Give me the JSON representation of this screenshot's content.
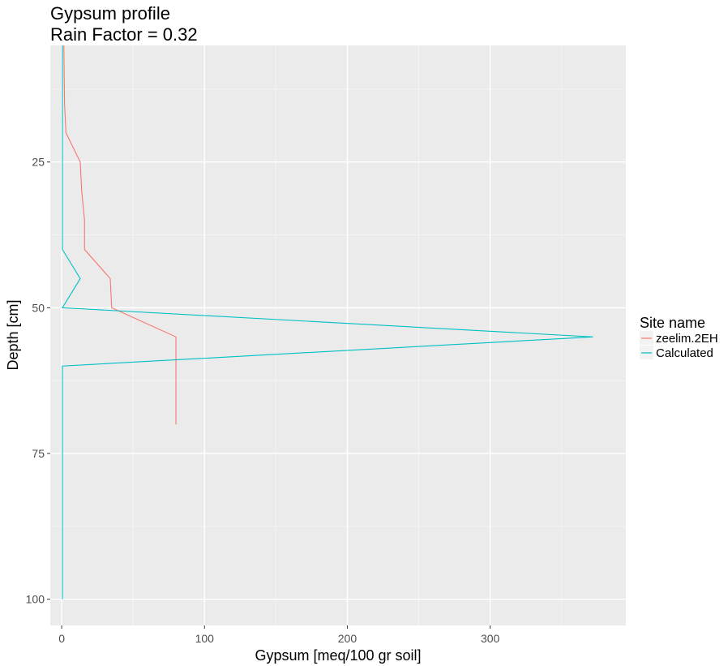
{
  "chart_data": {
    "type": "line",
    "title": "Gypsum profile",
    "subtitle": "Rain Factor = 0.32",
    "xlabel": "Gypsum [meq/100 gr soil]",
    "ylabel": "Depth [cm]",
    "xlim": [
      -8,
      395
    ],
    "ylim": [
      5,
      104.5
    ],
    "y_reversed": true,
    "x_major_ticks": [
      0,
      100,
      200,
      300
    ],
    "x_minor_ticks": [
      50,
      150,
      250,
      350
    ],
    "y_major_ticks": [
      25,
      50,
      75,
      100
    ],
    "y_minor_ticks": [
      12.5,
      37.5,
      62.5,
      87.5
    ],
    "x_tick_labels": [
      "0",
      "100",
      "200",
      "300"
    ],
    "y_tick_labels": [
      "25",
      "50",
      "75",
      "100"
    ],
    "grid": true,
    "legend": {
      "title": "Site name",
      "position": "right"
    },
    "series": [
      {
        "name": "zeelim.2EH",
        "color": "#F8766D",
        "points": [
          {
            "x": 1.5,
            "y": 5
          },
          {
            "x": 2,
            "y": 15
          },
          {
            "x": 3,
            "y": 20
          },
          {
            "x": 13,
            "y": 25
          },
          {
            "x": 14,
            "y": 30
          },
          {
            "x": 16,
            "y": 35
          },
          {
            "x": 16,
            "y": 40
          },
          {
            "x": 34,
            "y": 45
          },
          {
            "x": 35,
            "y": 50
          },
          {
            "x": 80,
            "y": 55
          },
          {
            "x": 80,
            "y": 70
          }
        ]
      },
      {
        "name": "Calculated",
        "color": "#00BFC4",
        "points": [
          {
            "x": 0.5,
            "y": 5
          },
          {
            "x": 0.5,
            "y": 40
          },
          {
            "x": 13,
            "y": 45
          },
          {
            "x": 0.5,
            "y": 50
          },
          {
            "x": 372,
            "y": 55
          },
          {
            "x": 0.5,
            "y": 60
          },
          {
            "x": 0.5,
            "y": 100
          }
        ]
      }
    ]
  }
}
